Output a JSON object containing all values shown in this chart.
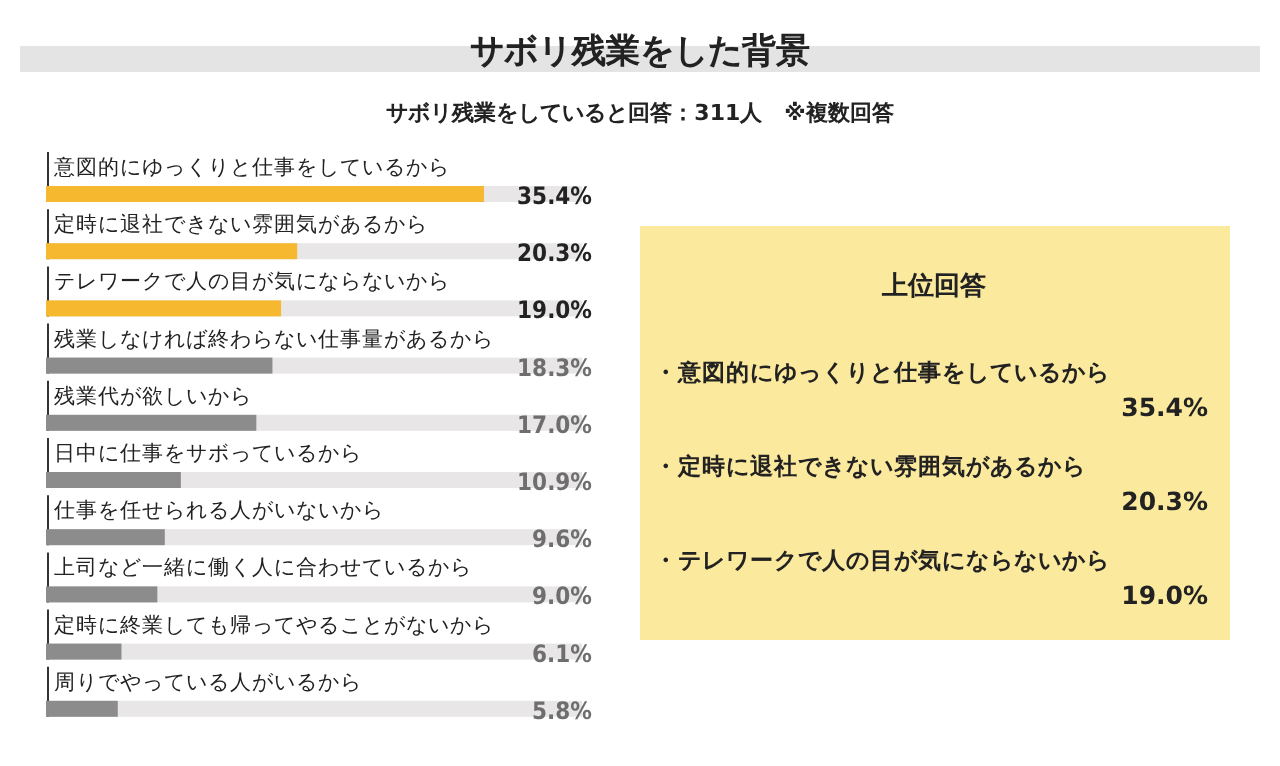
{
  "chart_data": {
    "type": "bar",
    "orientation": "horizontal",
    "title": "サボリ残業をした背景",
    "subtitle": "サボリ残業をしていると回答：311人　※複数回答",
    "categories": [
      "意図的にゆっくりと仕事をしているから",
      "定時に退社できない雰囲気があるから",
      "テレワークで人の目が気にならないから",
      "残業しなければ終わらない仕事量があるから",
      "残業代が欲しいから",
      "日中に仕事をサボっているから",
      "仕事を任せられる人がいないから",
      "上司など一緒に働く人に合わせているから",
      "定時に終業しても帰ってやることがないから",
      "周りでやっている人がいるから"
    ],
    "values": [
      35.4,
      20.3,
      19.0,
      18.3,
      17.0,
      10.9,
      9.6,
      9.0,
      6.1,
      5.8
    ],
    "value_labels": [
      "35.4%",
      "20.3%",
      "19.0%",
      "18.3%",
      "17.0%",
      "10.9%",
      "9.6%",
      "9.0%",
      "6.1%",
      "5.8%"
    ],
    "colors": [
      "#f5b82e",
      "#f5b82e",
      "#f5b82e",
      "#8c8c8c",
      "#8c8c8c",
      "#8c8c8c",
      "#8c8c8c",
      "#8c8c8c",
      "#8c8c8c",
      "#8c8c8c"
    ],
    "annotations": [
      "上位回答",
      "・意図的にゆっくりと仕事をしているから",
      "35.4%",
      "・定時に退社できない雰囲気があるから",
      "20.3%",
      "・テレワークで人の目が気にならないから",
      "19.0%"
    ]
  }
}
